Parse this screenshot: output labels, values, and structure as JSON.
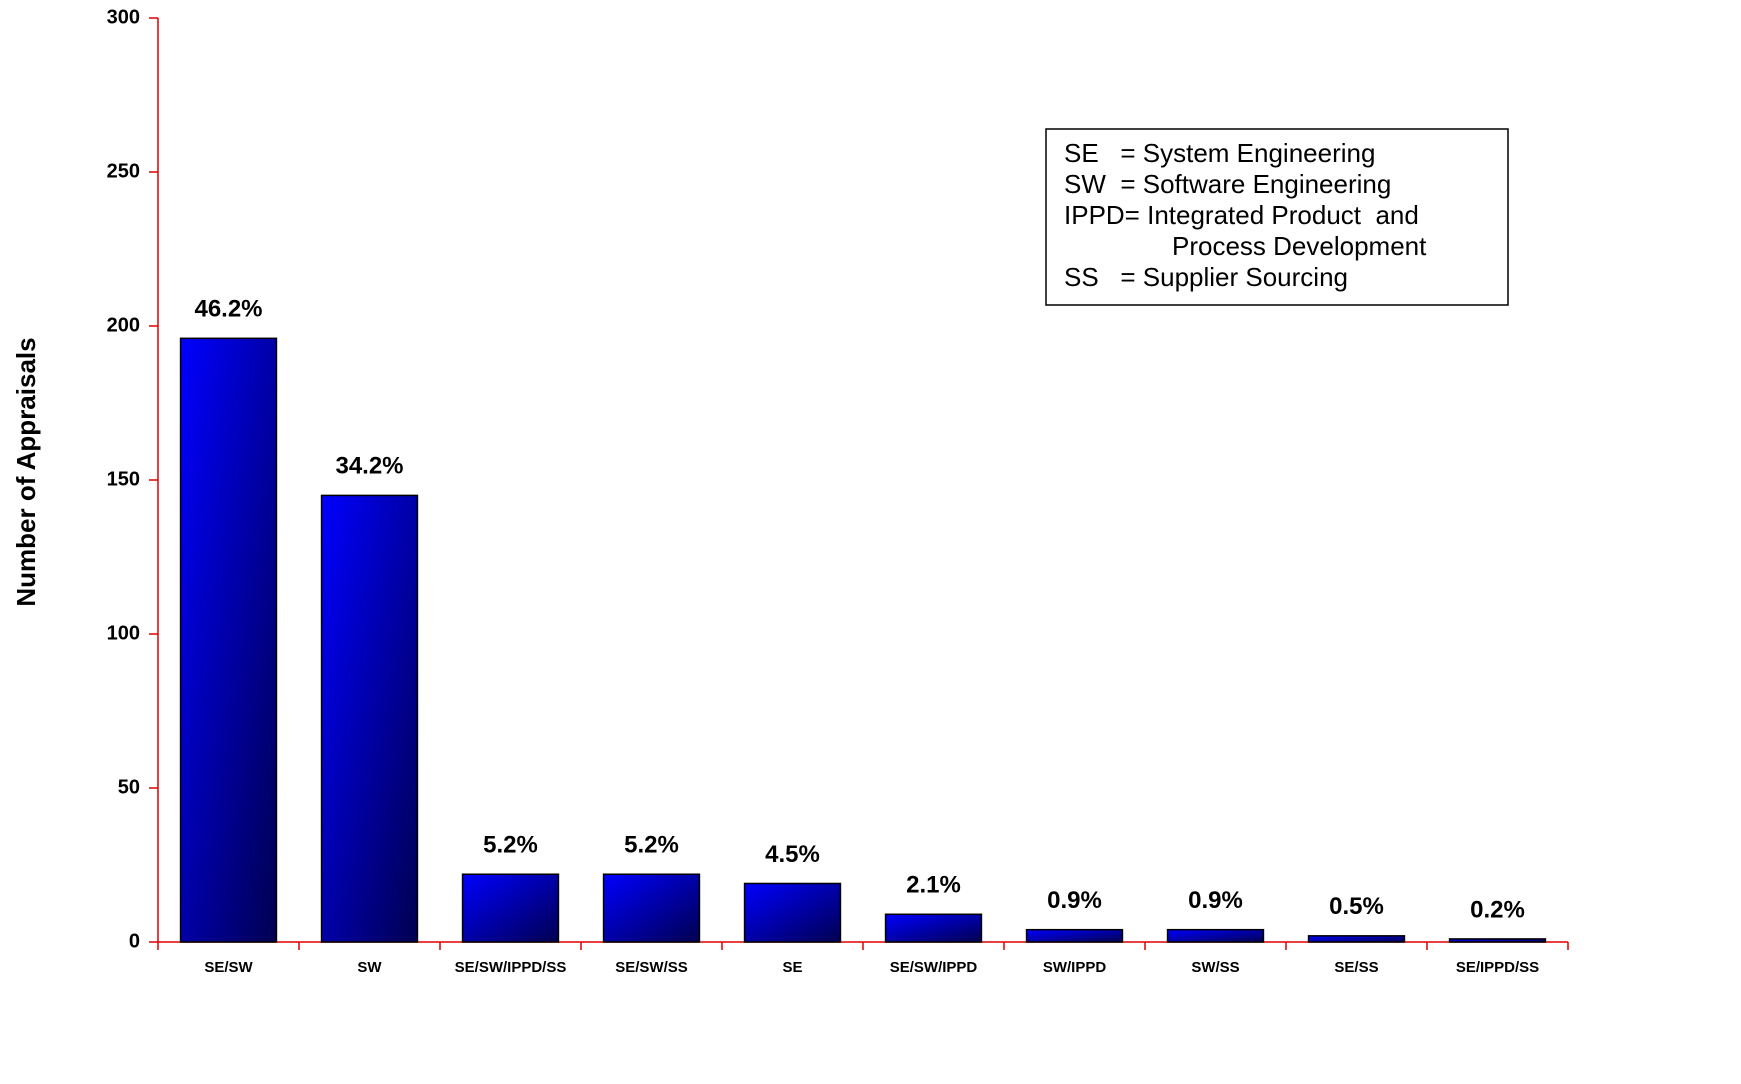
{
  "chart_data": {
    "type": "bar",
    "y_label": "Number of Appraisals",
    "categories": [
      "SE/SW",
      "SW",
      "SE/SW/IPPD/SS",
      "SE/SW/SS",
      "SE",
      "SE/SW/IPPD",
      "SW/IPPD",
      "SW/SS",
      "SE/SS",
      "SE/IPPD/SS"
    ],
    "values": [
      196,
      145,
      22,
      22,
      19,
      9,
      4,
      4,
      2,
      1
    ],
    "bar_labels": [
      "46.2%",
      "34.2%",
      "5.2%",
      "5.2%",
      "4.5%",
      "2.1%",
      "0.9%",
      "0.9%",
      "0.5%",
      "0.2%"
    ],
    "color": "#0000ff",
    "ylim": [
      0,
      300
    ],
    "yticks": [
      0,
      50,
      100,
      150,
      200,
      250,
      300
    ],
    "grid": false,
    "note": [
      "SE   = System Engineering",
      "SW  = Software Engineering",
      "IPPD= Integrated Product  and",
      "Process Development",
      "SS   = Supplier Sourcing"
    ]
  }
}
